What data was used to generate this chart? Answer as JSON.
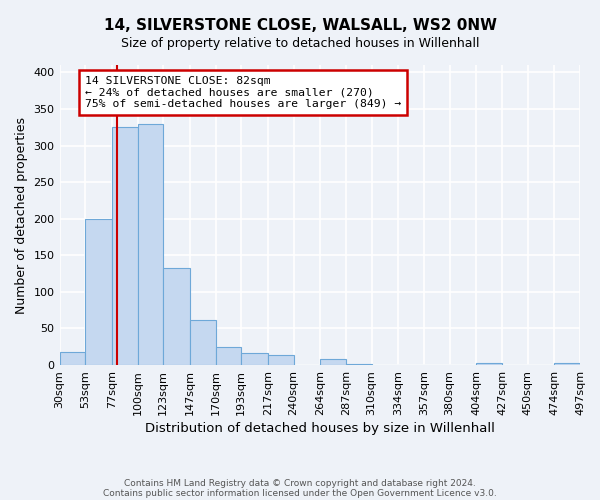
{
  "title": "14, SILVERSTONE CLOSE, WALSALL, WS2 0NW",
  "subtitle": "Size of property relative to detached houses in Willenhall",
  "xlabel": "Distribution of detached houses by size in Willenhall",
  "ylabel": "Number of detached properties",
  "bar_color": "#c5d8f0",
  "bar_edge_color": "#6ea8d8",
  "background_color": "#eef2f8",
  "grid_color": "#ffffff",
  "bin_edges": [
    30,
    53,
    77,
    100,
    123,
    147,
    170,
    193,
    217,
    240,
    264,
    287,
    310,
    334,
    357,
    380,
    404,
    427,
    450,
    474,
    497
  ],
  "bin_labels": [
    "30sqm",
    "53sqm",
    "77sqm",
    "100sqm",
    "123sqm",
    "147sqm",
    "170sqm",
    "193sqm",
    "217sqm",
    "240sqm",
    "264sqm",
    "287sqm",
    "310sqm",
    "334sqm",
    "357sqm",
    "380sqm",
    "404sqm",
    "427sqm",
    "450sqm",
    "474sqm",
    "497sqm"
  ],
  "bar_heights": [
    18,
    200,
    325,
    330,
    132,
    62,
    25,
    16,
    14,
    0,
    8,
    1,
    0,
    0,
    0,
    0,
    3,
    0,
    0,
    3
  ],
  "ylim": [
    0,
    410
  ],
  "yticks": [
    0,
    50,
    100,
    150,
    200,
    250,
    300,
    350,
    400
  ],
  "property_line_x": 82,
  "property_line_color": "#cc0000",
  "annotation_text": "14 SILVERSTONE CLOSE: 82sqm\n← 24% of detached houses are smaller (270)\n75% of semi-detached houses are larger (849) →",
  "annotation_box_color": "#ffffff",
  "annotation_box_edge_color": "#cc0000",
  "footer_line1": "Contains HM Land Registry data © Crown copyright and database right 2024.",
  "footer_line2": "Contains public sector information licensed under the Open Government Licence v3.0."
}
